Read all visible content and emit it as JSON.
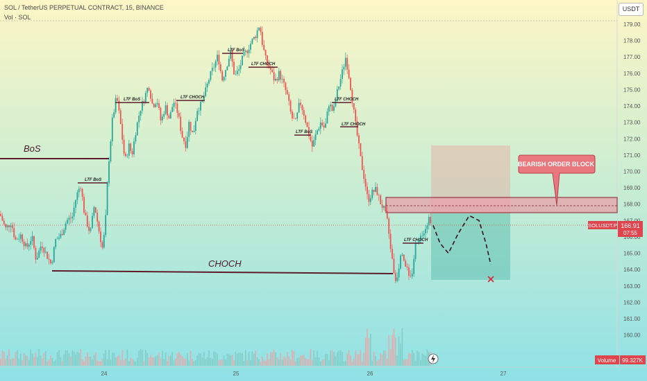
{
  "header": {
    "title": "SOL / TetherUS PERPETUAL CONTRACT, 15, BINANCE",
    "subtitle": "Vol · SOL"
  },
  "currency_badge": "USDT",
  "price_tag": {
    "symbol": "SOLUSDT.P",
    "price": "166.91",
    "countdown": "07:55",
    "color": "#e0454e"
  },
  "volume_tag": {
    "label": "Volume",
    "value": "99.327K",
    "color": "#e0454e"
  },
  "annotations": {
    "bos": "BoS",
    "choch": "CHOCH",
    "bearish_order_block": "BEARISH ORDER BLOCK",
    "small_labels": [
      "LTF BoS",
      "LTF BoS",
      "LTF CHOCH",
      "LTF BoS",
      "LTF CHOCH",
      "LTF BoS",
      "LTF CHOCH",
      "LTF CHOCH",
      "LTF CHOCH"
    ]
  },
  "colors": {
    "up": "#26a69a",
    "down": "#ef5350",
    "level": "#5c1a2b",
    "order_block": "#e8a0a8"
  },
  "chart_data": {
    "type": "candlestick",
    "y_axis_ticks": [
      179,
      178,
      177,
      176,
      175,
      174,
      173,
      172,
      171,
      170,
      169,
      168,
      167,
      166,
      165,
      164,
      163,
      162,
      161,
      160
    ],
    "ylim": [
      159.5,
      179.5
    ],
    "x_tick_labels": [
      "",
      "24",
      "",
      "25",
      "",
      "26",
      "",
      "27",
      "",
      ""
    ],
    "levels": [
      {
        "label": "BoS",
        "price": 171.0
      },
      {
        "label": "CHOCH",
        "price": 164.2
      }
    ],
    "order_block": {
      "top": 168.6,
      "bottom": 167.6,
      "mid": 168.0
    },
    "current_price": 166.91,
    "projection": {
      "entry": 167.7,
      "target": 163.6,
      "stop": 171.9
    },
    "close_path": [
      [
        0,
        167.4
      ],
      [
        8,
        166.5
      ],
      [
        16,
        166.9
      ],
      [
        22,
        165.8
      ],
      [
        30,
        166.1
      ],
      [
        38,
        165.3
      ],
      [
        46,
        166.0
      ],
      [
        52,
        164.6
      ],
      [
        60,
        165.6
      ],
      [
        66,
        165.0
      ],
      [
        74,
        164.3
      ],
      [
        80,
        165.8
      ],
      [
        88,
        166.1
      ],
      [
        96,
        167.0
      ],
      [
        104,
        167.2
      ],
      [
        110,
        168.5
      ],
      [
        116,
        169.2
      ],
      [
        122,
        167.3
      ],
      [
        130,
        166.2
      ],
      [
        136,
        168.0
      ],
      [
        142,
        166.5
      ],
      [
        148,
        165.2
      ],
      [
        152,
        167.0
      ],
      [
        156,
        170.3
      ],
      [
        162,
        173.2
      ],
      [
        168,
        174.6
      ],
      [
        174,
        172.8
      ],
      [
        180,
        170.6
      ],
      [
        186,
        171.6
      ],
      [
        190,
        171.0
      ],
      [
        196,
        172.6
      ],
      [
        202,
        173.8
      ],
      [
        208,
        174.5
      ],
      [
        214,
        175.3
      ],
      [
        220,
        174.0
      ],
      [
        226,
        174.4
      ],
      [
        232,
        173.0
      ],
      [
        238,
        174.0
      ],
      [
        244,
        173.2
      ],
      [
        250,
        174.3
      ],
      [
        256,
        173.6
      ],
      [
        262,
        172.2
      ],
      [
        268,
        171.6
      ],
      [
        272,
        173.0
      ],
      [
        278,
        172.2
      ],
      [
        284,
        173.8
      ],
      [
        290,
        174.1
      ],
      [
        296,
        174.9
      ],
      [
        302,
        175.8
      ],
      [
        308,
        176.4
      ],
      [
        314,
        177.1
      ],
      [
        320,
        175.6
      ],
      [
        326,
        176.4
      ],
      [
        332,
        177.3
      ],
      [
        338,
        175.8
      ],
      [
        344,
        176.2
      ],
      [
        350,
        177.0
      ],
      [
        356,
        177.4
      ],
      [
        362,
        177.9
      ],
      [
        368,
        178.3
      ],
      [
        374,
        179.0
      ],
      [
        378,
        177.8
      ],
      [
        384,
        176.6
      ],
      [
        390,
        176.2
      ],
      [
        396,
        175.5
      ],
      [
        402,
        176.0
      ],
      [
        408,
        175.4
      ],
      [
        414,
        174.6
      ],
      [
        420,
        173.3
      ],
      [
        426,
        173.0
      ],
      [
        432,
        174.3
      ],
      [
        438,
        173.5
      ],
      [
        444,
        172.4
      ],
      [
        450,
        171.5
      ],
      [
        456,
        172.4
      ],
      [
        462,
        173.0
      ],
      [
        468,
        172.6
      ],
      [
        474,
        174.2
      ],
      [
        480,
        173.6
      ],
      [
        486,
        174.9
      ],
      [
        492,
        175.9
      ],
      [
        498,
        177.0
      ],
      [
        504,
        175.5
      ],
      [
        508,
        174.2
      ],
      [
        512,
        172.9
      ],
      [
        516,
        171.8
      ],
      [
        520,
        170.6
      ],
      [
        526,
        169.3
      ],
      [
        530,
        168.2
      ],
      [
        536,
        168.7
      ],
      [
        542,
        168.9
      ],
      [
        548,
        168.1
      ],
      [
        554,
        167.6
      ],
      [
        558,
        166.9
      ],
      [
        562,
        165.6
      ],
      [
        566,
        164.2
      ],
      [
        570,
        163.3
      ],
      [
        574,
        164.0
      ],
      [
        578,
        165.4
      ],
      [
        582,
        164.6
      ],
      [
        586,
        164.1
      ],
      [
        590,
        163.2
      ],
      [
        594,
        163.9
      ],
      [
        598,
        165.4
      ],
      [
        602,
        165.9
      ],
      [
        606,
        166.0
      ],
      [
        610,
        166.4
      ],
      [
        614,
        166.7
      ],
      [
        618,
        167.2
      ],
      [
        622,
        166.91
      ]
    ],
    "projected_path": [
      [
        624,
        166.7
      ],
      [
        634,
        165.6
      ],
      [
        646,
        165.0
      ],
      [
        660,
        166.2
      ],
      [
        676,
        167.3
      ],
      [
        690,
        167.0
      ],
      [
        700,
        165.6
      ],
      [
        707,
        164.3
      ]
    ]
  }
}
